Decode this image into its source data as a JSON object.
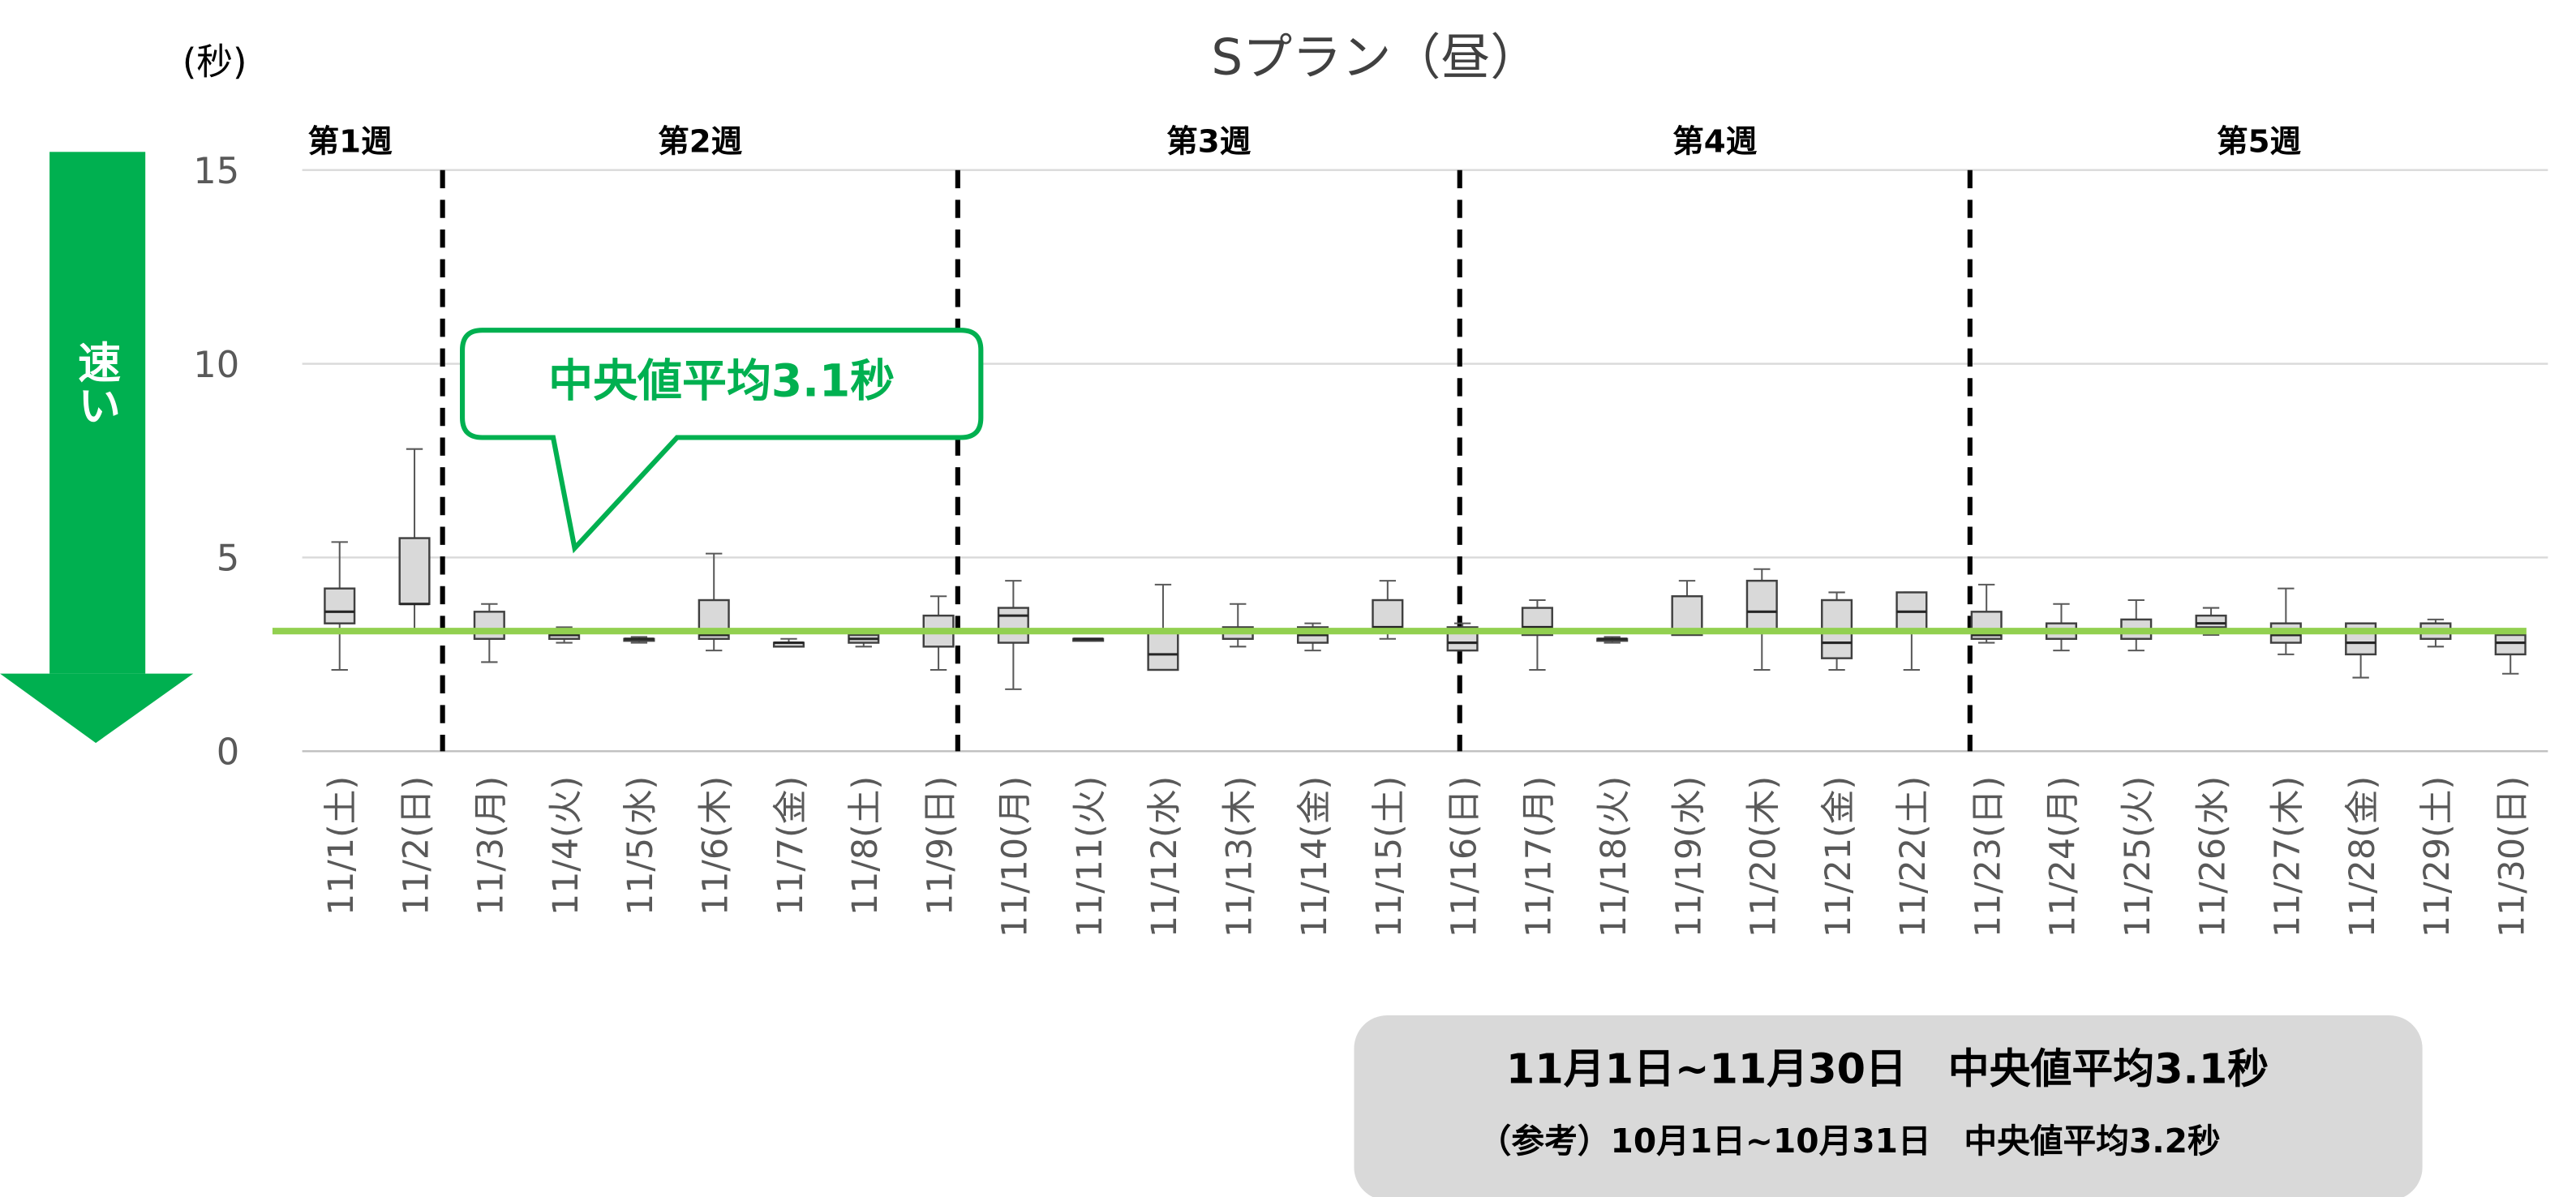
{
  "chart_data": {
    "type": "box",
    "title": "Sプラン（昼）",
    "y_unit_label": "(秒)",
    "categories": [
      "11/1(土)",
      "11/2(日)",
      "11/3(月)",
      "11/4(火)",
      "11/5(水)",
      "11/6(木)",
      "11/7(金)",
      "11/8(土)",
      "11/9(日)",
      "11/10(月)",
      "11/11(火)",
      "11/12(水)",
      "11/13(木)",
      "11/14(金)",
      "11/15(土)",
      "11/16(日)",
      "11/17(月)",
      "11/18(火)",
      "11/19(水)",
      "11/20(木)",
      "11/21(金)",
      "11/22(土)",
      "11/23(日)",
      "11/24(月)",
      "11/25(火)",
      "11/26(水)",
      "11/27(木)",
      "11/28(金)",
      "11/29(土)",
      "11/30(日)"
    ],
    "min": [
      2.1,
      3.1,
      2.3,
      2.8,
      2.8,
      2.6,
      2.7,
      2.7,
      2.1,
      1.6,
      2.85,
      2.1,
      2.7,
      2.6,
      2.9,
      2.6,
      2.1,
      2.8,
      3.0,
      2.1,
      2.1,
      2.1,
      2.8,
      2.6,
      2.6,
      3.0,
      2.5,
      1.9,
      2.7,
      2.0
    ],
    "q1": [
      3.3,
      3.8,
      2.9,
      2.9,
      2.85,
      2.9,
      2.7,
      2.8,
      2.7,
      2.8,
      2.85,
      2.1,
      2.9,
      2.8,
      3.1,
      2.6,
      3.0,
      2.85,
      3.0,
      3.1,
      2.4,
      3.1,
      2.9,
      2.9,
      2.9,
      3.2,
      2.8,
      2.5,
      2.9,
      2.5
    ],
    "median": [
      3.6,
      3.8,
      3.1,
      3.0,
      2.9,
      3.0,
      2.8,
      2.9,
      3.1,
      3.5,
      2.9,
      2.5,
      3.1,
      3.0,
      3.2,
      2.8,
      3.2,
      2.9,
      3.1,
      3.6,
      2.8,
      3.6,
      3.0,
      3.1,
      3.1,
      3.3,
      3.0,
      2.8,
      3.1,
      2.8
    ],
    "q3": [
      4.2,
      5.5,
      3.6,
      3.1,
      2.9,
      3.9,
      2.8,
      3.0,
      3.5,
      3.7,
      2.9,
      3.1,
      3.2,
      3.2,
      3.9,
      3.2,
      3.7,
      2.9,
      4.0,
      4.4,
      3.9,
      4.1,
      3.6,
      3.3,
      3.4,
      3.5,
      3.3,
      3.3,
      3.3,
      3.0
    ],
    "max": [
      5.4,
      7.8,
      3.8,
      3.2,
      2.95,
      5.1,
      2.9,
      3.1,
      4.0,
      4.4,
      2.9,
      4.3,
      3.8,
      3.3,
      4.4,
      3.3,
      3.9,
      2.95,
      4.4,
      4.7,
      4.1,
      4.1,
      4.3,
      3.8,
      3.9,
      3.7,
      4.2,
      3.3,
      3.4,
      3.1
    ],
    "color": "#d9d9d9",
    "ylim": [
      0,
      15
    ],
    "yticks": [
      0,
      5,
      10,
      15
    ],
    "grid": true,
    "reference_line": {
      "value": 3.1,
      "color": "#92d050"
    },
    "weeks": [
      "第1週",
      "第2週",
      "第3週",
      "第4週",
      "第5週"
    ],
    "callout": "中央値平均3.1秒",
    "arrow_label": "速い",
    "summary": [
      "11月1日~11月30日　中央値平均3.1秒",
      "（参考）10月1日~10月31日　中央値平均3.2秒"
    ]
  }
}
